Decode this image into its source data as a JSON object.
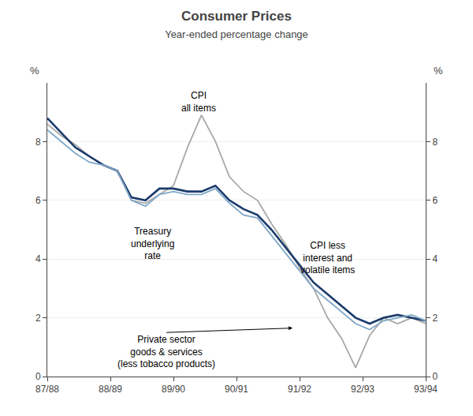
{
  "chart_data": {
    "type": "line",
    "title": "Consumer Prices",
    "subtitle": "Year-ended percentage change",
    "x": [
      0,
      1,
      2,
      3,
      4,
      5,
      6,
      7,
      8,
      9,
      10,
      11,
      12,
      13,
      14,
      15,
      16,
      17,
      18,
      19,
      20,
      21,
      22,
      23,
      24,
      25,
      26,
      27
    ],
    "xlim": [
      0,
      27
    ],
    "xticks": [
      {
        "value": 0,
        "label": "87/88"
      },
      {
        "value": 4.5,
        "label": "88/89"
      },
      {
        "value": 9,
        "label": "89/90"
      },
      {
        "value": 13.5,
        "label": "90/91"
      },
      {
        "value": 18,
        "label": "91/92"
      },
      {
        "value": 22.5,
        "label": "92/93"
      },
      {
        "value": 27,
        "label": "93/94"
      }
    ],
    "ylim": [
      0,
      10
    ],
    "yticks": [
      0,
      2,
      4,
      6,
      8
    ],
    "y2lim": [
      0,
      10
    ],
    "y2ticks": [
      0,
      2,
      4,
      6,
      8
    ],
    "ylabel": "%",
    "y2label": "%",
    "grid": true,
    "series": [
      {
        "color": "#a8a8a8",
        "values": [
          8.6,
          8.2,
          7.9,
          7.5,
          7.2,
          7.0,
          6.0,
          5.9,
          6.2,
          6.5,
          7.8,
          8.9,
          8.0,
          6.8,
          6.3,
          6.0,
          5.2,
          4.5,
          3.7,
          3.0,
          2.0,
          1.3,
          0.3,
          1.4,
          2.0,
          1.8,
          2.0,
          1.8
        ]
      },
      {
        "color": "#1a3a6b",
        "values": [
          8.8,
          8.3,
          7.8,
          7.5,
          7.2,
          7.0,
          6.1,
          6.0,
          6.4,
          6.4,
          6.3,
          6.3,
          6.5,
          6.0,
          5.7,
          5.5,
          5.0,
          4.4,
          3.8,
          3.2,
          2.8,
          2.4,
          2.0,
          1.8,
          2.0,
          2.1,
          2.0,
          1.9
        ]
      },
      {
        "color": "#7fa8c8",
        "values": [
          8.4,
          8.0,
          7.6,
          7.3,
          7.2,
          7.0,
          6.0,
          5.8,
          6.2,
          6.3,
          6.2,
          6.2,
          6.4,
          5.9,
          5.5,
          5.4,
          4.8,
          4.2,
          3.6,
          3.0,
          2.6,
          2.2,
          1.8,
          1.6,
          1.9,
          2.0,
          2.1,
          1.9
        ]
      }
    ],
    "annotations": [
      {
        "text": "CPI\nall items",
        "x": 10.8,
        "y": 8.9
      },
      {
        "text": "Treasury\nunderlying\nrate",
        "x": 7.5,
        "y": 5.2
      },
      {
        "text": "CPI less\ninterest and\nvolatile items",
        "x": 20,
        "y": 4.7
      },
      {
        "text": "Private sector\ngoods & services\n(less tobacco products)",
        "x": 17.5,
        "y": 1.65,
        "text_x": 8.5,
        "text_y": 1.5
      }
    ]
  }
}
